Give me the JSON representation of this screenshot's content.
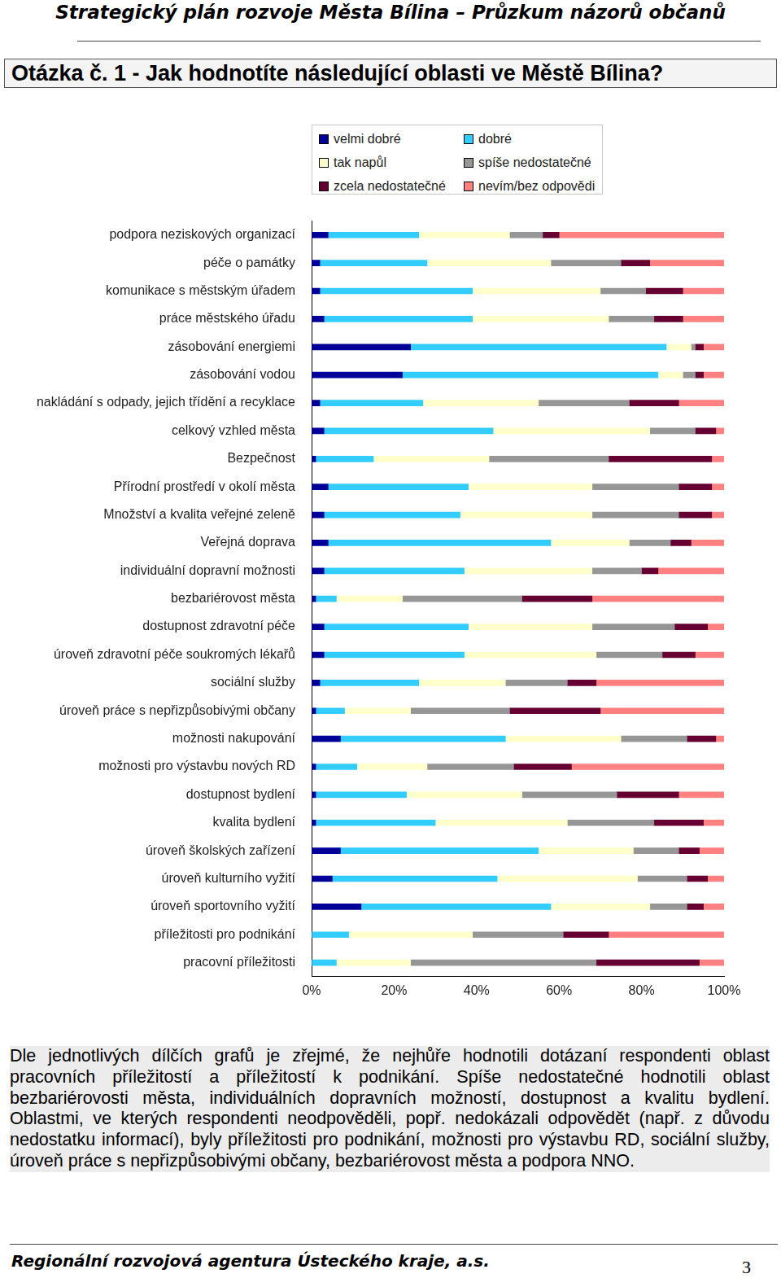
{
  "header": {
    "title": "Strategický plán rozvoje Města Bílina – Průzkum názorů občanů"
  },
  "question": "Otázka č. 1 - Jak hodnotíte následující oblasti ve Městě Bílina?",
  "chart_data": {
    "type": "bar",
    "orientation": "horizontal",
    "stacked": true,
    "grid": false,
    "legend": "top",
    "categories": [
      "podpora neziskových organizací",
      "péče o památky",
      "komunikace s městským úřadem",
      "práce městského úřadu",
      "zásobování energiemi",
      "zásobování vodou",
      "nakládání s odpady, jejich třídění a recyklace",
      "celkový vzhled města",
      "Bezpečnost",
      "Přírodní prostředí v okolí města",
      "Množství a kvalita veřejné zeleně",
      "Veřejná doprava",
      "individuální dopravní možnosti",
      "bezbariérovost města",
      "dostupnost zdravotní péče",
      "úroveň zdravotní péče soukromých lékařů",
      "sociální služby",
      "úroveň práce s nepřizpůsobivými občany",
      "možnosti nakupování",
      "možnosti pro výstavbu nových RD",
      "dostupnost bydlení",
      "kvalita bydlení",
      "úroveň školských zařízení",
      "úroveň kulturního vyžití",
      "úroveň sportovního vyžití",
      "příležitosti pro podnikání",
      "pracovní příležitosti"
    ],
    "series": [
      {
        "name": "velmi dobré",
        "color": "#000099",
        "values": [
          4,
          2,
          2,
          3,
          24,
          22,
          2,
          3,
          1,
          4,
          3,
          4,
          3,
          1,
          3,
          3,
          2,
          1,
          7,
          1,
          1,
          1,
          7,
          5,
          12,
          0,
          0
        ]
      },
      {
        "name": "dobré",
        "color": "#33CCFF",
        "values": [
          22,
          26,
          37,
          36,
          62,
          62,
          25,
          41,
          14,
          34,
          33,
          54,
          34,
          5,
          35,
          34,
          24,
          7,
          40,
          10,
          22,
          29,
          48,
          40,
          46,
          9,
          6
        ]
      },
      {
        "name": "tak napůl",
        "color": "#FFFFCC",
        "values": [
          22,
          30,
          31,
          33,
          6,
          6,
          28,
          38,
          28,
          30,
          32,
          19,
          31,
          16,
          30,
          32,
          21,
          16,
          28,
          17,
          28,
          32,
          23,
          34,
          24,
          30,
          18
        ]
      },
      {
        "name": "spíše nedostatečné",
        "color": "#969696",
        "values": [
          8,
          17,
          11,
          11,
          1,
          3,
          22,
          11,
          29,
          21,
          21,
          10,
          12,
          29,
          20,
          16,
          15,
          24,
          16,
          21,
          23,
          21,
          11,
          12,
          9,
          22,
          45
        ]
      },
      {
        "name": "zcela nedostatečné",
        "color": "#660033",
        "values": [
          4,
          7,
          9,
          7,
          2,
          2,
          12,
          5,
          25,
          8,
          8,
          5,
          4,
          17,
          8,
          8,
          7,
          22,
          7,
          14,
          15,
          12,
          5,
          5,
          4,
          11,
          25
        ]
      },
      {
        "name": "nevím/bez odpovědi",
        "color": "#FF8080",
        "values": [
          40,
          18,
          10,
          10,
          5,
          5,
          11,
          2,
          3,
          3,
          3,
          8,
          16,
          32,
          4,
          7,
          31,
          30,
          2,
          37,
          11,
          5,
          6,
          4,
          5,
          28,
          6
        ]
      }
    ],
    "xlim": [
      0,
      100
    ],
    "xticks": [
      {
        "value": 0,
        "label": "0%"
      },
      {
        "value": 20,
        "label": "20%"
      },
      {
        "value": 40,
        "label": "40%"
      },
      {
        "value": 60,
        "label": "60%"
      },
      {
        "value": 80,
        "label": "80%"
      },
      {
        "value": 100,
        "label": "100%"
      }
    ]
  },
  "text": "Dle jednotlivých dílčích grafů je zřejmé, že nejhůře hodnotili dotázaní respondenti oblast pracovních příležitostí a příležitostí k podnikání. Spíše nedostatečné hodnotili oblast bezbariérovosti města, individuálních dopravních možností, dostupnost a kvalitu bydlení. Oblastmi, ve kterých respondenti neodpověděli, popř. nedokázali odpovědět (např. z důvodu nedostatku informací), byly příležitosti pro podnikání, možnosti pro výstavbu RD, sociální služby, úroveň práce s nepřizpůsobivými občany, bezbariérovost města a podpora NNO.",
  "footer": {
    "agency": "Regionální rozvojová agentura Ústeckého kraje, a.s.",
    "page": 3
  }
}
